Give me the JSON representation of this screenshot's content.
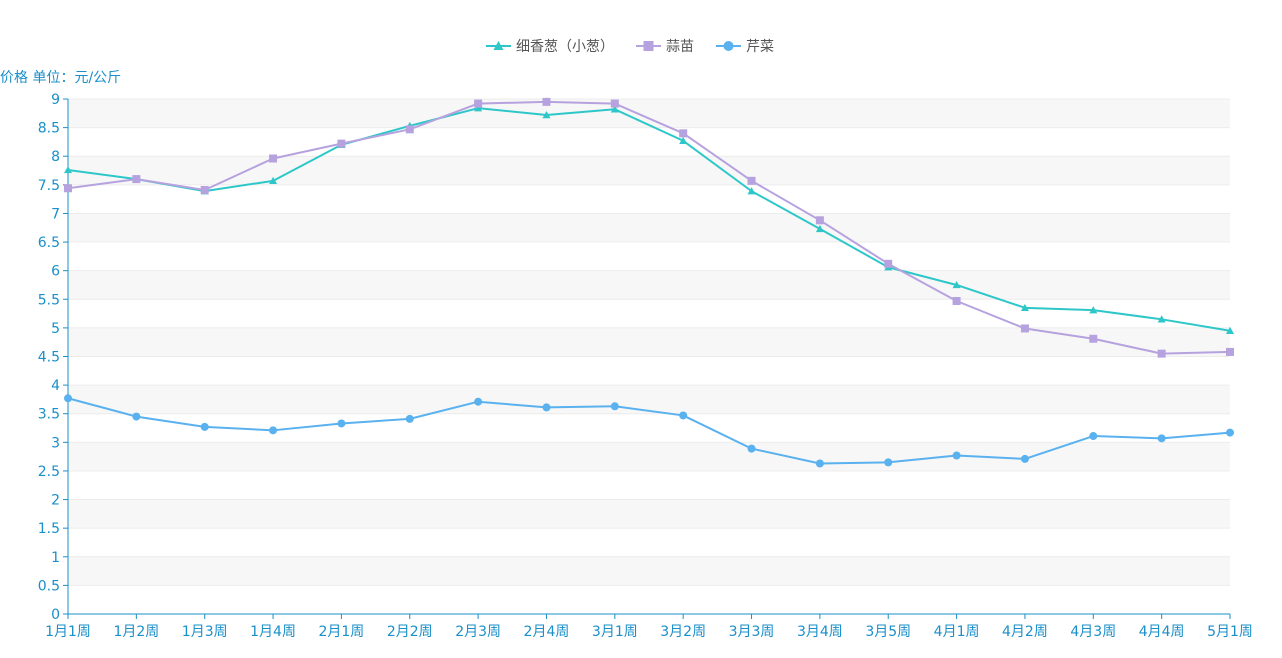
{
  "chart_data": {
    "type": "line",
    "ylabel": "价格 单位：元/公斤",
    "ylim": [
      0,
      9
    ],
    "ytick_step": 0.5,
    "categories": [
      "1月1周",
      "1月2周",
      "1月3周",
      "1月4周",
      "2月1周",
      "2月2周",
      "2月3周",
      "2月4周",
      "3月1周",
      "3月2周",
      "3月3周",
      "3月4周",
      "3月5周",
      "4月1周",
      "4月2周",
      "4月3周",
      "4月4周",
      "5月1周"
    ],
    "series": [
      {
        "name": "细香葱（小葱）",
        "color": "#2ec7c9",
        "marker": "triangle",
        "values": [
          7.76,
          7.6,
          7.39,
          7.57,
          8.2,
          8.53,
          8.84,
          8.72,
          8.82,
          8.27,
          7.39,
          6.73,
          6.06,
          5.75,
          5.35,
          5.31,
          5.15,
          4.95
        ]
      },
      {
        "name": "蒜苗",
        "color": "#b6a2de",
        "marker": "square",
        "values": [
          7.44,
          7.6,
          7.41,
          7.96,
          8.22,
          8.47,
          8.92,
          8.95,
          8.92,
          8.4,
          7.57,
          6.88,
          6.12,
          5.47,
          4.99,
          4.81,
          4.55,
          4.58
        ]
      },
      {
        "name": "芹菜",
        "color": "#5ab1ef",
        "marker": "circle",
        "values": [
          3.77,
          3.45,
          3.27,
          3.21,
          3.33,
          3.41,
          3.71,
          3.61,
          3.63,
          3.47,
          2.89,
          2.63,
          2.65,
          2.77,
          2.71,
          3.11,
          3.07,
          3.17
        ]
      }
    ],
    "legend_position": "top-center",
    "grid": true,
    "axis_color": "#1a8fc9",
    "band_colors": [
      "#f7f7f7",
      "#ffffff"
    ]
  }
}
